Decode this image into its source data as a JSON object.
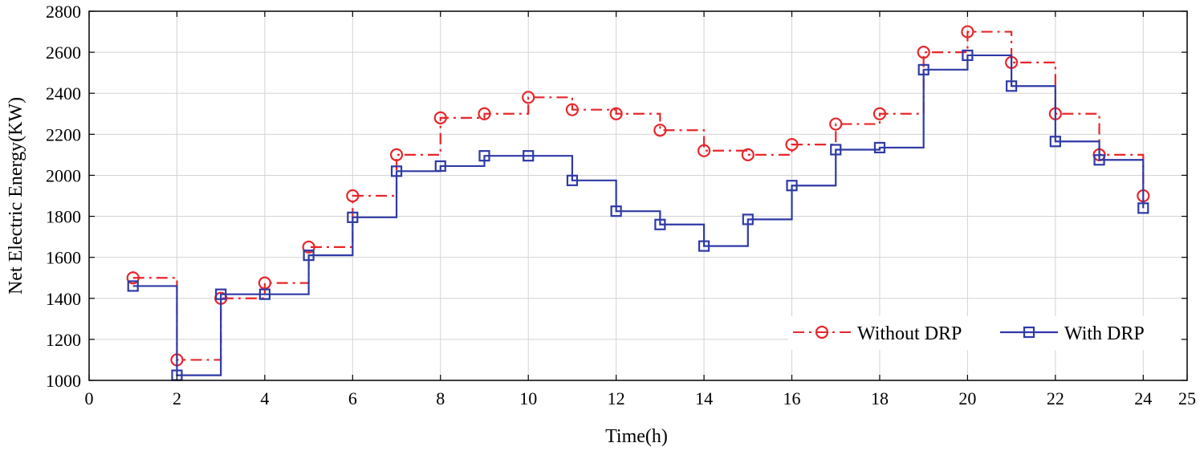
{
  "chart_data": {
    "type": "line",
    "step": "post",
    "xlabel": "Time(h)",
    "ylabel": "Net Electric Energy(KW)",
    "xlim": [
      0,
      25
    ],
    "ylim": [
      1000,
      2800
    ],
    "xticks": [
      0,
      2,
      4,
      6,
      8,
      10,
      12,
      14,
      16,
      18,
      20,
      22,
      24,
      25
    ],
    "yticks": [
      1000,
      1200,
      1400,
      1600,
      1800,
      2000,
      2200,
      2400,
      2600,
      2800
    ],
    "grid": true,
    "legend_position": "bottom-right",
    "x": [
      1,
      2,
      3,
      4,
      5,
      6,
      7,
      8,
      9,
      10,
      11,
      12,
      13,
      14,
      15,
      16,
      17,
      18,
      19,
      20,
      21,
      22,
      23,
      24
    ],
    "series": [
      {
        "name": "Without DRP",
        "color": "#e8262b",
        "line_style": "dash-dot",
        "marker": "circle",
        "values": [
          1500,
          1100,
          1400,
          1475,
          1650,
          1900,
          2100,
          2280,
          2300,
          2380,
          2320,
          2300,
          2220,
          2120,
          2100,
          2150,
          2250,
          2300,
          2600,
          2700,
          2550,
          2300,
          2100,
          1900
        ]
      },
      {
        "name": "With DRP",
        "color": "#2e3aa6",
        "line_style": "solid",
        "marker": "square",
        "values": [
          1460,
          1025,
          1420,
          1420,
          1610,
          1795,
          2020,
          2045,
          2095,
          2095,
          1975,
          1825,
          1760,
          1655,
          1785,
          1950,
          2125,
          2135,
          2515,
          2585,
          2435,
          2165,
          2075,
          1840
        ]
      }
    ]
  }
}
